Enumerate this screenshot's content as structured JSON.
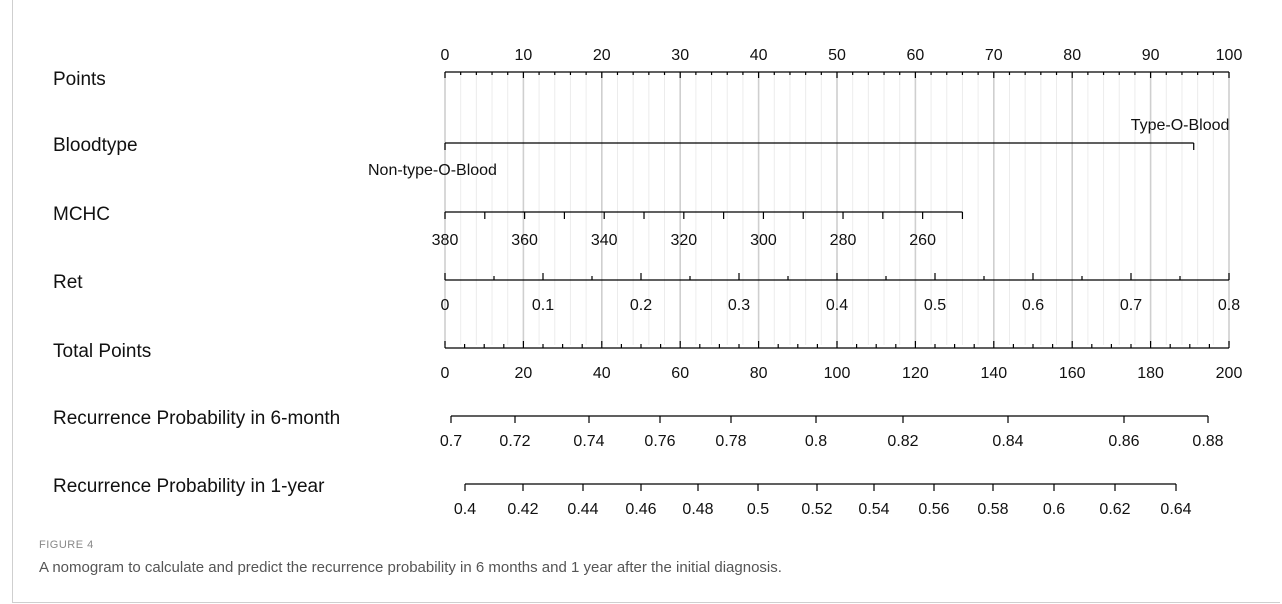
{
  "figure": {
    "label": "FIGURE 4",
    "caption": "A nomogram to calculate and predict the recurrence probability in 6 months and 1 year after the initial diagnosis."
  },
  "colors": {
    "axis": "#000000",
    "grid": "#d9d9d9",
    "text": "#111111"
  },
  "chart_data": {
    "type": "nomogram",
    "title": "",
    "grid": true,
    "rows": [
      {
        "name": "Points",
        "ticks": [
          0,
          10,
          20,
          30,
          40,
          50,
          60,
          70,
          80,
          90,
          100
        ]
      },
      {
        "name": "Bloodtype",
        "levels": [
          {
            "label": "Non-type-O-Blood",
            "points": 0
          },
          {
            "label": "Type-O-Blood",
            "points": 95.5
          }
        ]
      },
      {
        "name": "MCHC",
        "ticks": [
          380,
          360,
          340,
          320,
          300,
          280,
          260
        ],
        "range": [
          380,
          250
        ],
        "points_range": [
          0,
          66
        ]
      },
      {
        "name": "Ret",
        "ticks": [
          0,
          0.1,
          0.2,
          0.3,
          0.4,
          0.5,
          0.6,
          0.7,
          0.8
        ],
        "points_range": [
          0,
          100
        ]
      },
      {
        "name": "Total Points",
        "ticks": [
          0,
          20,
          40,
          60,
          80,
          100,
          120,
          140,
          160,
          180,
          200
        ]
      },
      {
        "name": "Recurrence Probability in 6-month",
        "ticks": [
          0.7,
          0.72,
          0.74,
          0.76,
          0.78,
          0.8,
          0.82,
          0.84,
          0.86,
          0.88
        ]
      },
      {
        "name": "Recurrence Probability in 1-year",
        "ticks": [
          0.4,
          0.42,
          0.44,
          0.46,
          0.48,
          0.5,
          0.52,
          0.54,
          0.56,
          0.58,
          0.6,
          0.62,
          0.64
        ]
      }
    ]
  }
}
